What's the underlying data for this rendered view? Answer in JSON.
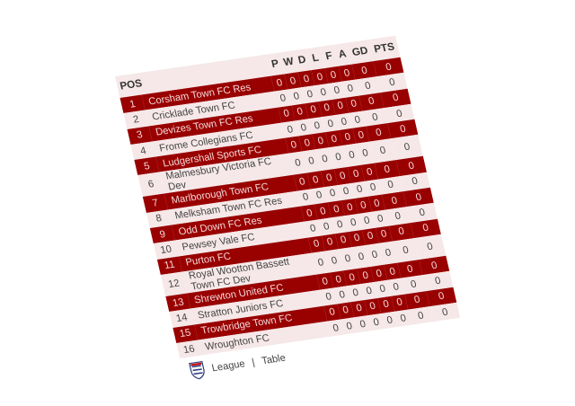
{
  "table": {
    "headers": {
      "pos": "POS",
      "p": "P",
      "w": "W",
      "d": "D",
      "l": "L",
      "f": "F",
      "a": "A",
      "gd": "GD",
      "pts": "PTS"
    },
    "rows": [
      {
        "pos": "1",
        "team": "Corsham Town FC Res",
        "p": "0",
        "w": "0",
        "d": "0",
        "l": "0",
        "f": "0",
        "a": "0",
        "gd": "0",
        "pts": "0"
      },
      {
        "pos": "2",
        "team": "Cricklade Town FC",
        "p": "0",
        "w": "0",
        "d": "0",
        "l": "0",
        "f": "0",
        "a": "0",
        "gd": "0",
        "pts": "0"
      },
      {
        "pos": "3",
        "team": "Devizes Town FC Res",
        "p": "0",
        "w": "0",
        "d": "0",
        "l": "0",
        "f": "0",
        "a": "0",
        "gd": "0",
        "pts": "0"
      },
      {
        "pos": "4",
        "team": "Frome Collegians FC",
        "p": "0",
        "w": "0",
        "d": "0",
        "l": "0",
        "f": "0",
        "a": "0",
        "gd": "0",
        "pts": "0"
      },
      {
        "pos": "5",
        "team": "Ludgershall Sports FC",
        "p": "0",
        "w": "0",
        "d": "0",
        "l": "0",
        "f": "0",
        "a": "0",
        "gd": "0",
        "pts": "0"
      },
      {
        "pos": "6",
        "team": "Malmesbury Victoria FC Dev",
        "p": "0",
        "w": "0",
        "d": "0",
        "l": "0",
        "f": "0",
        "a": "0",
        "gd": "0",
        "pts": "0"
      },
      {
        "pos": "7",
        "team": "Marlborough Town FC",
        "p": "0",
        "w": "0",
        "d": "0",
        "l": "0",
        "f": "0",
        "a": "0",
        "gd": "0",
        "pts": "0"
      },
      {
        "pos": "8",
        "team": "Melksham Town FC Res",
        "p": "0",
        "w": "0",
        "d": "0",
        "l": "0",
        "f": "0",
        "a": "0",
        "gd": "0",
        "pts": "0"
      },
      {
        "pos": "9",
        "team": "Odd Down FC Res",
        "p": "0",
        "w": "0",
        "d": "0",
        "l": "0",
        "f": "0",
        "a": "0",
        "gd": "0",
        "pts": "0"
      },
      {
        "pos": "10",
        "team": "Pewsey Vale FC",
        "p": "0",
        "w": "0",
        "d": "0",
        "l": "0",
        "f": "0",
        "a": "0",
        "gd": "0",
        "pts": "0"
      },
      {
        "pos": "11",
        "team": "Purton FC",
        "p": "0",
        "w": "0",
        "d": "0",
        "l": "0",
        "f": "0",
        "a": "0",
        "gd": "0",
        "pts": "0"
      },
      {
        "pos": "12",
        "team": "Royal Wootton Bassett Town FC Dev",
        "p": "0",
        "w": "0",
        "d": "0",
        "l": "0",
        "f": "0",
        "a": "0",
        "gd": "0",
        "pts": "0"
      },
      {
        "pos": "13",
        "team": "Shrewton United FC",
        "p": "0",
        "w": "0",
        "d": "0",
        "l": "0",
        "f": "0",
        "a": "0",
        "gd": "0",
        "pts": "0"
      },
      {
        "pos": "14",
        "team": "Stratton Juniors FC",
        "p": "0",
        "w": "0",
        "d": "0",
        "l": "0",
        "f": "0",
        "a": "0",
        "gd": "0",
        "pts": "0"
      },
      {
        "pos": "15",
        "team": "Trowbridge Town FC",
        "p": "0",
        "w": "0",
        "d": "0",
        "l": "0",
        "f": "0",
        "a": "0",
        "gd": "0",
        "pts": "0"
      },
      {
        "pos": "16",
        "team": "Wroughton FC",
        "p": "0",
        "w": "0",
        "d": "0",
        "l": "0",
        "f": "0",
        "a": "0",
        "gd": "0",
        "pts": "0"
      }
    ]
  },
  "footer": {
    "logo_icon": "fa-crest-icon",
    "league_link": "League",
    "separator": "|",
    "table_link": "Table"
  },
  "colors": {
    "accent": "#990000",
    "stripe": "#f6e8e8"
  }
}
